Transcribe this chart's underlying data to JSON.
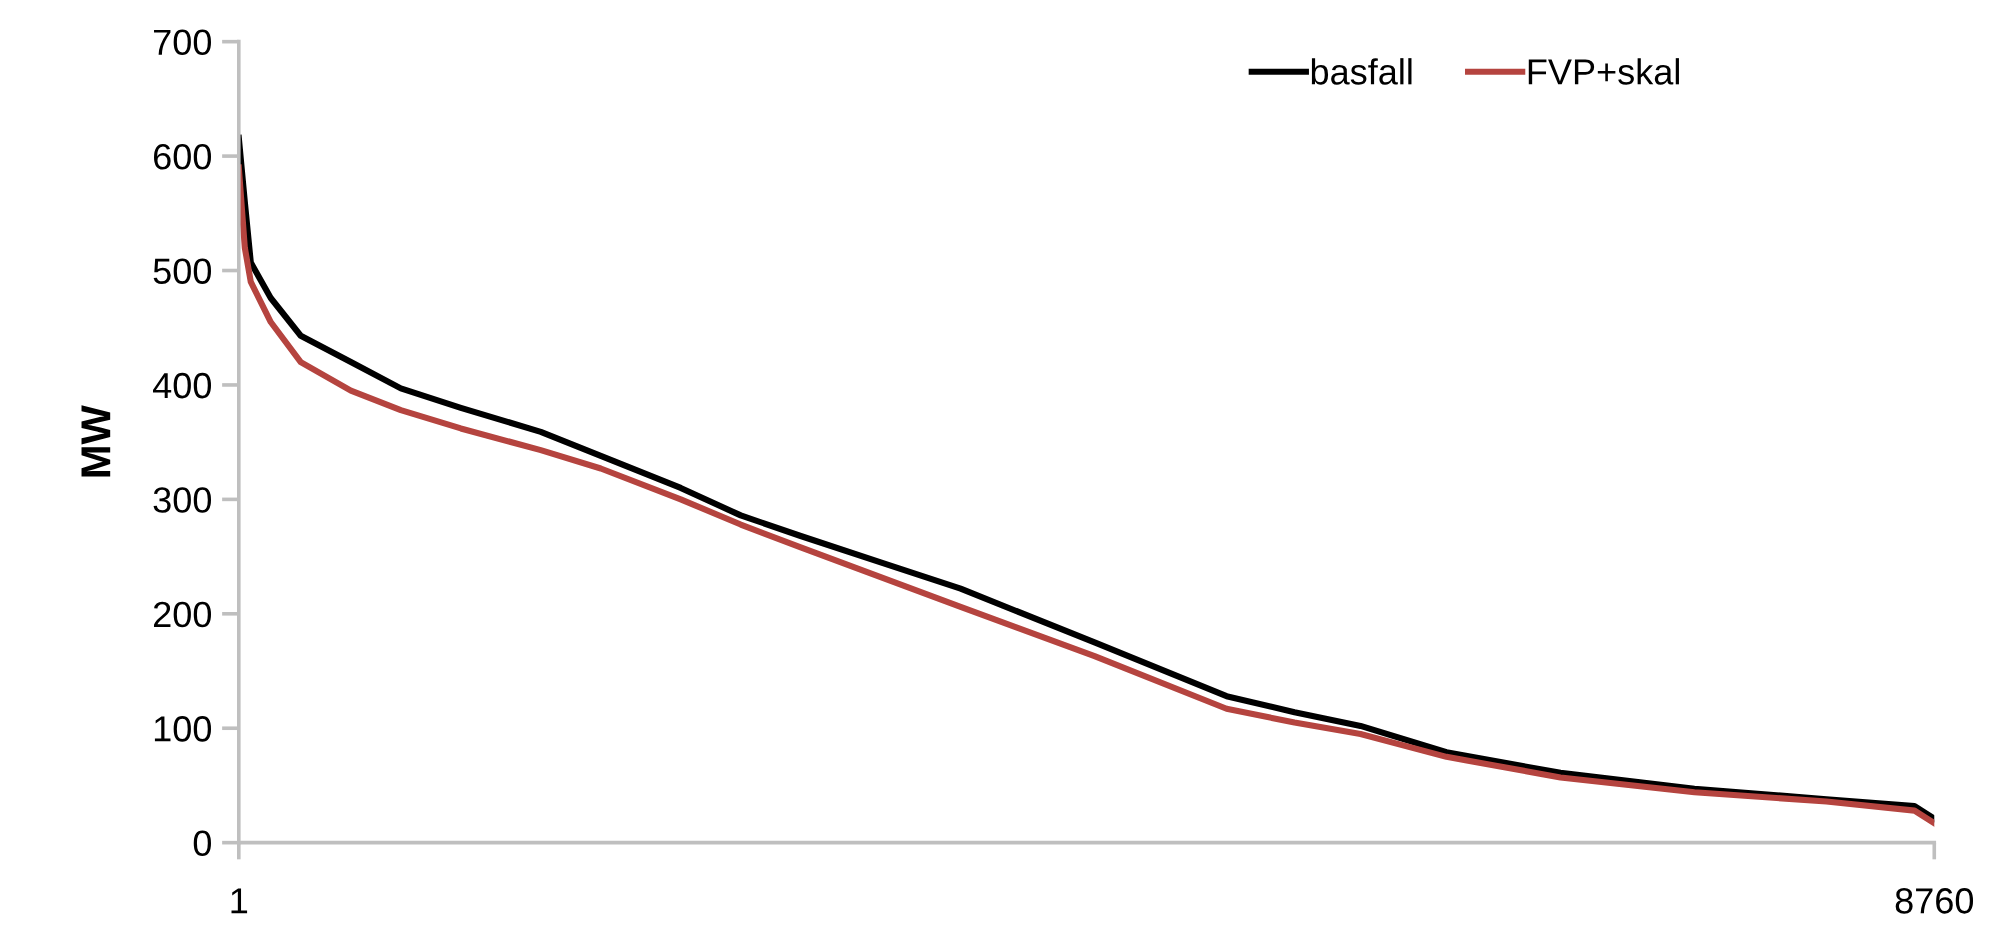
{
  "chart_data": {
    "type": "line",
    "ylabel": "MW",
    "x": [
      1,
      32,
      63,
      166,
      321,
      580,
      838,
      1148,
      1561,
      1871,
      2284,
      2594,
      2904,
      3317,
      3730,
      4422,
      5104,
      5455,
      5796,
      6240,
      6829,
      7521,
      8203,
      8658,
      8760
    ],
    "series": [
      {
        "name": "basfall",
        "color": "#000000",
        "values": [
          616,
          560,
          507,
          476,
          443,
          420,
          397,
          380,
          359,
          338,
          310,
          286,
          268,
          245,
          222,
          175,
          128,
          114,
          102,
          79,
          61,
          47,
          38,
          32,
          21
        ]
      },
      {
        "name": "FVP+skal",
        "color": "#b5443f",
        "values": [
          590,
          520,
          490,
          455,
          420,
          395,
          378,
          362,
          343,
          327,
          300,
          278,
          258,
          232,
          206,
          163,
          117,
          105,
          95,
          75,
          57,
          44,
          36,
          28,
          17
        ]
      }
    ],
    "xlim": [
      1,
      8760
    ],
    "xticks": [
      1,
      8760
    ],
    "ylim": [
      0,
      700
    ],
    "yticks": [
      0,
      100,
      200,
      300,
      400,
      500,
      600,
      700
    ],
    "grid": false,
    "legend": "top right",
    "line_style": "solid",
    "marker": "none"
  }
}
